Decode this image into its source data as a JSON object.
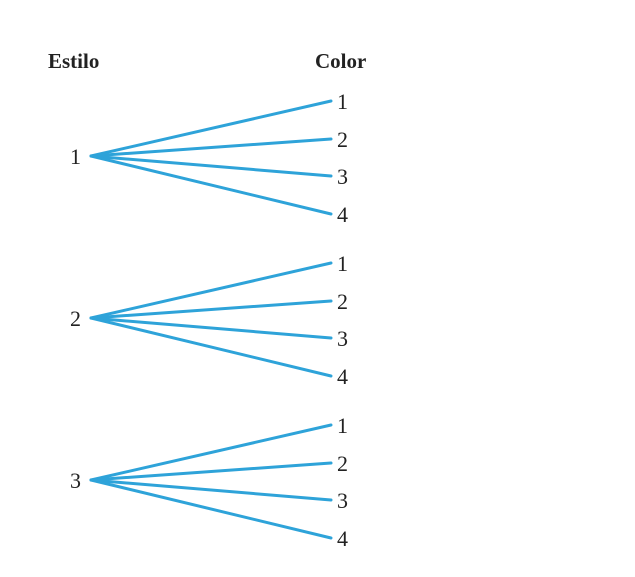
{
  "headers": {
    "style": "Estilo",
    "color": "Color"
  },
  "line_color": "#2ea3d9",
  "styles": [
    {
      "label": "1",
      "colors": [
        "1",
        "2",
        "3",
        "4"
      ]
    },
    {
      "label": "2",
      "colors": [
        "1",
        "2",
        "3",
        "4"
      ]
    },
    {
      "label": "3",
      "colors": [
        "1",
        "2",
        "3",
        "4"
      ]
    }
  ]
}
